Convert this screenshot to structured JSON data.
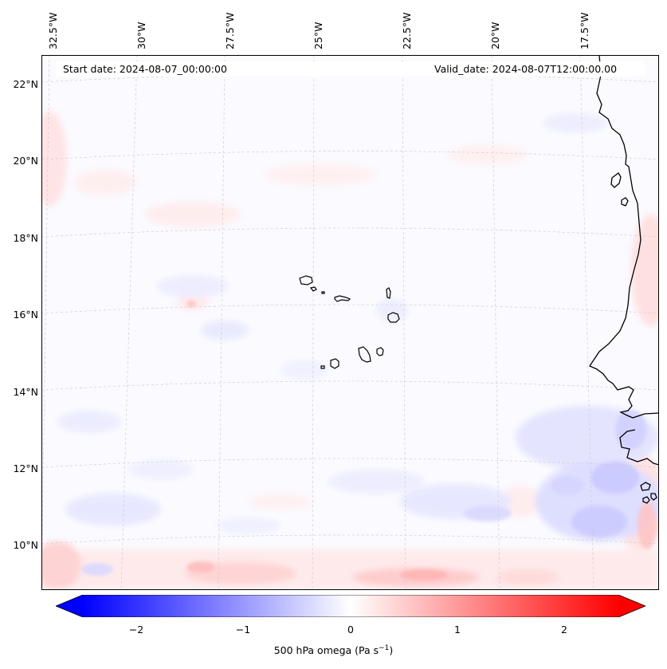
{
  "header": {
    "start_date": "Start date: 2024-08-07_00:00:00",
    "valid_date": "Valid_date: 2024-08-07T12:00:00.00"
  },
  "axes": {
    "lon_labels": [
      "32.5°W",
      "30°W",
      "27.5°W",
      "25°W",
      "22.5°W",
      "20°W",
      "17.5°W"
    ],
    "lat_labels": [
      "22°N",
      "20°N",
      "18°N",
      "16°N",
      "14°N",
      "12°N",
      "10°N"
    ]
  },
  "colorbar": {
    "ticks": [
      "−2",
      "−1",
      "0",
      "1",
      "2"
    ],
    "label": "500 hPa omega (Pa s",
    "label_sup": "−1",
    "label_close": ")",
    "color_min": "#0000ff",
    "color_mid": "#ffffff",
    "color_max": "#ff0000"
  },
  "map": {
    "field": "500 hPa omega",
    "colormap": "bwr",
    "islands": "Cape Verde",
    "coast": "West Africa"
  }
}
